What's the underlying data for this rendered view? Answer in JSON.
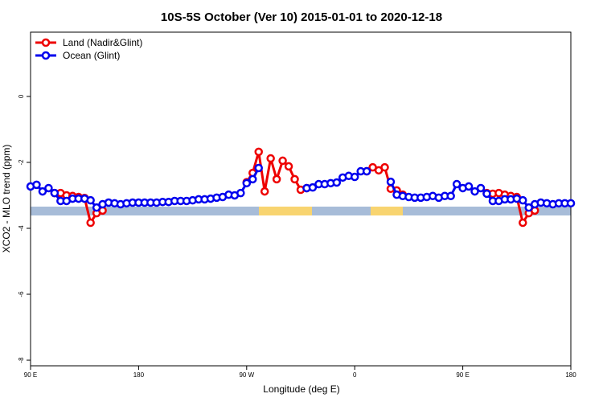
{
  "chart_data": {
    "type": "line",
    "title": "10S-5S October (Ver 10)   2015-01-01 to 2020-12-18",
    "x_label": "Longitude (deg E)",
    "y_label": "XCO2 - MLO trend (ppm)",
    "legend_position": "top-left",
    "xlim": [
      90,
      540
    ],
    "xticks": [
      {
        "value": 90,
        "label": "90 E"
      },
      180,
      {
        "value": 270,
        "label": "90 W"
      },
      {
        "value": 360,
        "label": "0"
      },
      {
        "value": 450,
        "label": "90 E"
      },
      {
        "value": 540,
        "label": "180"
      }
    ],
    "ylim": [
      -8.17,
      1.95
    ],
    "yticks": [
      0,
      -2,
      -4,
      -6,
      -8
    ],
    "x": [
      90,
      95,
      100,
      105,
      110,
      115,
      120,
      125,
      130,
      135,
      140,
      145,
      150,
      155,
      160,
      165,
      170,
      175,
      180,
      185,
      190,
      195,
      200,
      205,
      210,
      215,
      220,
      225,
      230,
      235,
      240,
      245,
      250,
      255,
      260,
      265,
      270,
      275,
      280,
      285,
      290,
      295,
      300,
      305,
      310,
      315,
      320,
      325,
      330,
      335,
      340,
      345,
      350,
      355,
      360,
      365,
      370,
      375,
      380,
      385,
      390,
      395,
      400,
      405,
      410,
      415,
      420,
      425,
      430,
      435,
      440,
      445,
      450,
      455,
      460,
      465,
      470,
      475,
      480,
      485,
      490,
      495,
      500,
      505,
      510,
      515,
      520,
      525,
      530,
      535,
      540
    ],
    "series": [
      {
        "name": "Land (Nadir&Glint)",
        "color": "#ee0000",
        "values": [
          null,
          null,
          null,
          null,
          -2.93,
          -2.93,
          -3.0,
          -3.02,
          -3.05,
          -3.08,
          -3.83,
          -3.54,
          -3.46,
          null,
          null,
          null,
          null,
          null,
          null,
          null,
          null,
          null,
          null,
          null,
          null,
          null,
          null,
          null,
          null,
          null,
          null,
          null,
          null,
          null,
          null,
          null,
          -2.6,
          -2.32,
          -1.68,
          -2.88,
          -1.88,
          -2.51,
          -1.95,
          -2.12,
          -2.51,
          -2.83,
          -2.78,
          null,
          null,
          null,
          null,
          null,
          null,
          null,
          null,
          null,
          -2.27,
          -2.15,
          -2.24,
          -2.15,
          -2.8,
          -2.85,
          -2.98,
          null,
          null,
          null,
          null,
          null,
          null,
          null,
          null,
          null,
          null,
          null,
          null,
          null,
          -2.93,
          -2.95,
          -2.93,
          -2.98,
          -3.02,
          -3.05,
          -3.83,
          -3.54,
          -3.46,
          null,
          null,
          null,
          null,
          null,
          null
        ]
      },
      {
        "name": "Ocean (Glint)",
        "color": "#0000ee",
        "values": [
          -2.73,
          -2.68,
          -2.88,
          -2.78,
          -2.93,
          -3.17,
          -3.17,
          -3.1,
          -3.1,
          -3.1,
          -3.15,
          -3.37,
          -3.27,
          -3.22,
          -3.24,
          -3.27,
          -3.24,
          -3.22,
          -3.22,
          -3.22,
          -3.22,
          -3.22,
          -3.2,
          -3.2,
          -3.17,
          -3.17,
          -3.17,
          -3.15,
          -3.12,
          -3.12,
          -3.1,
          -3.07,
          -3.05,
          -2.98,
          -3.0,
          -2.93,
          -2.63,
          -2.51,
          -2.17,
          null,
          null,
          null,
          null,
          null,
          null,
          null,
          -2.78,
          -2.76,
          -2.66,
          -2.66,
          -2.63,
          -2.61,
          -2.46,
          -2.41,
          -2.44,
          -2.27,
          -2.27,
          null,
          null,
          null,
          -2.59,
          -2.98,
          -3.02,
          -3.05,
          -3.07,
          -3.07,
          -3.05,
          -3.02,
          -3.07,
          -3.02,
          -3.02,
          -2.66,
          -2.78,
          -2.73,
          -2.88,
          -2.78,
          -2.95,
          -3.17,
          -3.17,
          -3.12,
          -3.12,
          -3.1,
          -3.15,
          -3.37,
          -3.27,
          -3.22,
          -3.24,
          -3.27,
          -3.24,
          -3.24,
          -3.24
        ]
      }
    ]
  }
}
